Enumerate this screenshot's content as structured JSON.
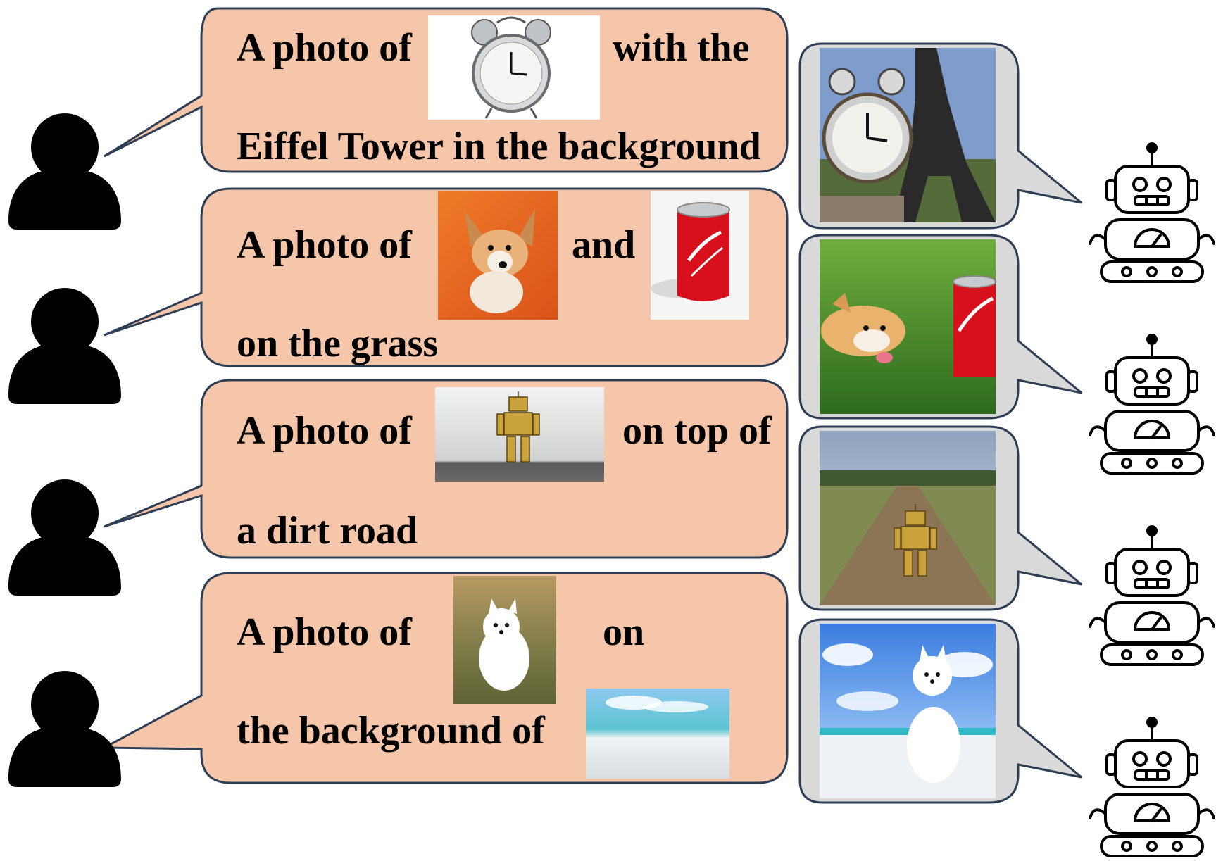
{
  "colors": {
    "user_bubble_fill": "#f6c6aa",
    "user_bubble_stroke": "#2e3f55",
    "bot_bubble_fill": "#d9d9d9",
    "bot_bubble_stroke": "#2e3f55",
    "person_icon": "#000000",
    "robot_icon_stroke": "#000000"
  },
  "rows": [
    {
      "prompt": {
        "part_1": "A photo of",
        "part_2": "with the",
        "part_3": "Eiffel Tower in the background"
      },
      "reference_images": [
        "alarm-clock-photo"
      ],
      "generated_image": "alarm-clock-eiffel-tower-photo",
      "user_icon": "person-icon",
      "bot_icon": "robot-icon"
    },
    {
      "prompt": {
        "part_1": "A photo of",
        "part_2": "and",
        "part_3": "on the grass"
      },
      "reference_images": [
        "corgi-puppy-photo",
        "coca-cola-can-photo"
      ],
      "generated_image": "corgi-and-cola-can-on-grass-photo",
      "user_icon": "person-icon",
      "bot_icon": "robot-icon"
    },
    {
      "prompt": {
        "part_1": "A photo of",
        "part_2": "on top of",
        "part_3": "a dirt road"
      },
      "reference_images": [
        "golden-robot-toy-photo"
      ],
      "generated_image": "robot-toy-on-dirt-road-photo",
      "user_icon": "person-icon",
      "bot_icon": "robot-icon"
    },
    {
      "prompt": {
        "part_1": "A photo of",
        "part_2": "on",
        "part_3": "the background of"
      },
      "reference_images": [
        "white-spitz-dog-photo",
        "white-beach-photo"
      ],
      "generated_image": "white-dog-on-beach-photo",
      "user_icon": "person-icon",
      "bot_icon": "robot-icon"
    }
  ]
}
